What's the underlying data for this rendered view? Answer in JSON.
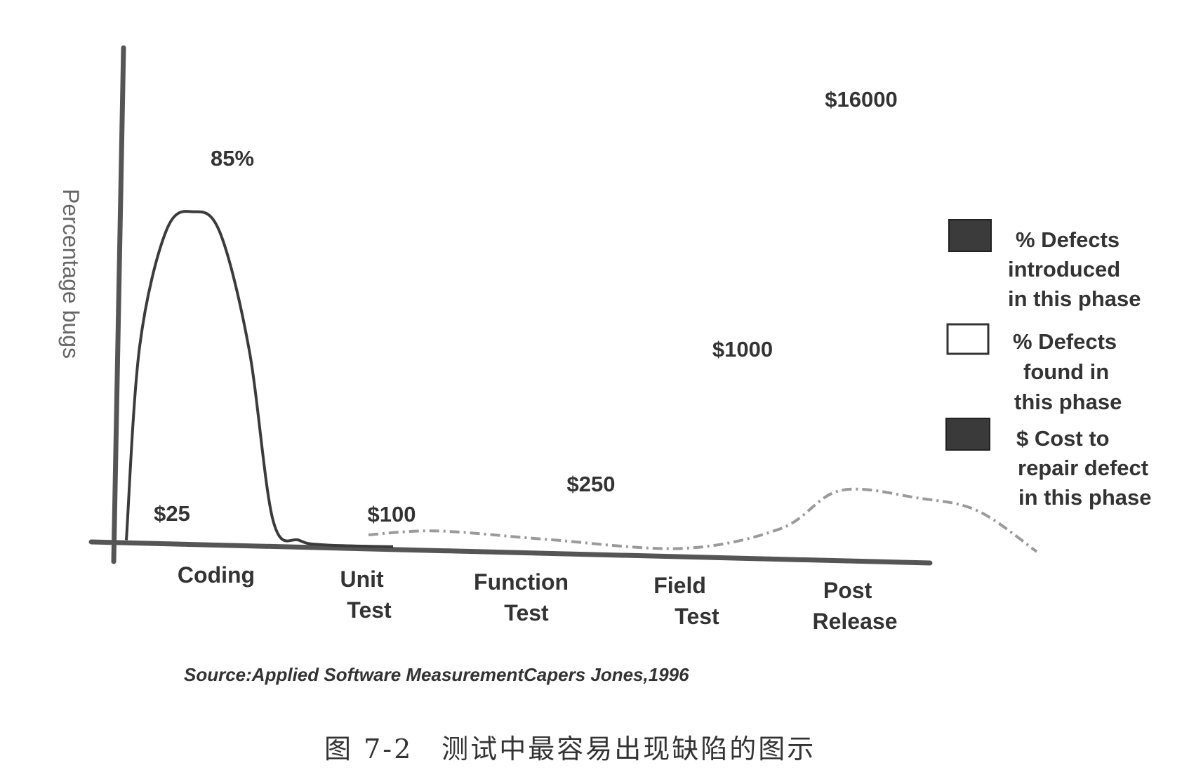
{
  "chart_data": {
    "type": "line",
    "ylabel": "Percentage bugs",
    "categories": [
      "Coding",
      "Unit Test",
      "Function Test",
      "Field Test",
      "Post Release"
    ],
    "category_lines": [
      [
        "Coding"
      ],
      [
        "Unit",
        "Test"
      ],
      [
        "Function",
        "Test"
      ],
      [
        "Field",
        "Test"
      ],
      [
        "Post",
        "Release"
      ]
    ],
    "series": [
      {
        "name": "% Defects introduced in this phase",
        "legend_lines": [
          "% Defects",
          "introduced",
          "in this phase"
        ],
        "color": "#3b3b3b",
        "peak_label": "85%",
        "points": [
          [
            0.0,
            0
          ],
          [
            0.1,
            50
          ],
          [
            0.3,
            80
          ],
          [
            0.5,
            85
          ],
          [
            0.7,
            80
          ],
          [
            0.92,
            50
          ],
          [
            1.1,
            6
          ],
          [
            1.3,
            1
          ],
          [
            1.5,
            0
          ],
          [
            2.0,
            0
          ]
        ]
      },
      {
        "name": "% Defects found in this phase",
        "legend_lines": [
          "% Defects",
          "found in",
          "this phase"
        ],
        "color": "#9a9a9a",
        "points": [
          [
            1.0,
            2
          ],
          [
            1.35,
            3
          ],
          [
            1.9,
            2
          ],
          [
            2.6,
            1
          ],
          [
            3.1,
            5
          ],
          [
            3.4,
            12
          ],
          [
            3.8,
            11
          ],
          [
            4.1,
            9
          ],
          [
            4.4,
            2
          ]
        ]
      },
      {
        "name": "$ Cost to repair defect in this phase",
        "legend_lines": [
          "$ Cost to",
          "repair defect",
          "in this phase"
        ],
        "color": "#2b2b2b",
        "values": [
          25,
          100,
          250,
          1000,
          16000
        ],
        "value_labels": [
          "$25",
          "$100",
          "$250",
          "$1000",
          "$16000"
        ]
      }
    ],
    "source": "Source:Applied Software MeasurementCapers Jones,1996",
    "caption": "图 7-2　测试中最容易出现缺陷的图示"
  }
}
